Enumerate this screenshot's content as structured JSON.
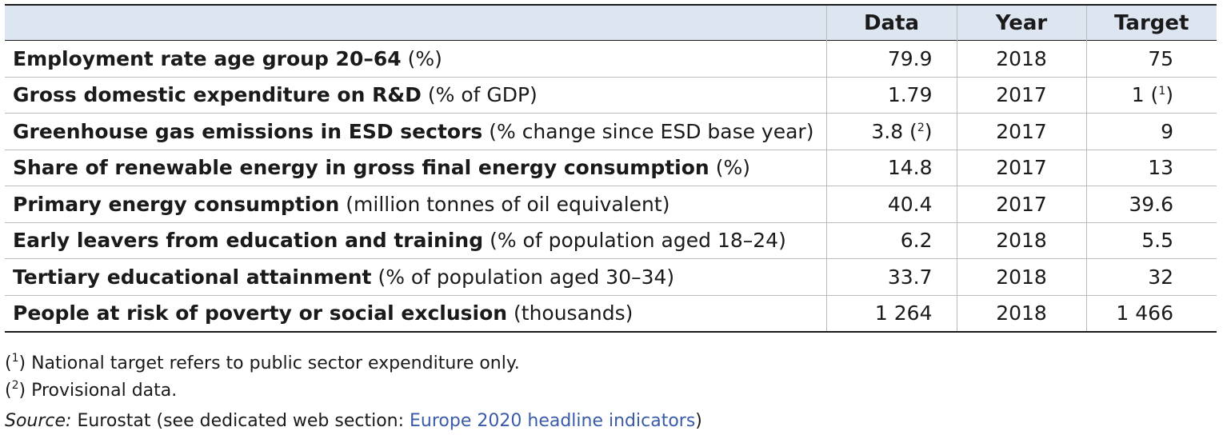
{
  "table": {
    "header": {
      "data": "Data",
      "year": "Year",
      "target": "Target"
    },
    "rows": [
      {
        "indicator": "Employment rate age group 20–64",
        "unit": "(%)",
        "data": "79.9",
        "data_note": "",
        "year": "2018",
        "target": "75",
        "target_note": ""
      },
      {
        "indicator": "Gross domestic expenditure on R&D",
        "unit": "(% of GDP)",
        "data": "1.79",
        "data_note": "",
        "year": "2017",
        "target": "1 (",
        "target_note": "1"
      },
      {
        "indicator": "Greenhouse gas emissions in ESD sectors",
        "unit": "(% change since ESD base year)",
        "data": "3.8 (",
        "data_note": "2",
        "year": "2017",
        "target": "9",
        "target_note": ""
      },
      {
        "indicator": "Share of renewable energy in gross final energy consumption",
        "unit": "(%)",
        "data": "14.8",
        "data_note": "",
        "year": "2017",
        "target": "13",
        "target_note": ""
      },
      {
        "indicator": "Primary energy consumption",
        "unit": "(million tonnes of oil equivalent)",
        "data": "40.4",
        "data_note": "",
        "year": "2017",
        "target": "39.6",
        "target_note": ""
      },
      {
        "indicator": "Early leavers from education and training",
        "unit": "(% of population aged 18–24)",
        "data": "6.2",
        "data_note": "",
        "year": "2018",
        "target": "5.5",
        "target_note": ""
      },
      {
        "indicator": "Tertiary educational attainment",
        "unit": "(% of population aged 30–34)",
        "data": "33.7",
        "data_note": "",
        "year": "2018",
        "target": "32",
        "target_note": ""
      },
      {
        "indicator": "People at risk of poverty or social exclusion",
        "unit": "(thousands)",
        "data": "1 264",
        "data_note": "",
        "year": "2018",
        "target": "1 466",
        "target_note": ""
      }
    ]
  },
  "footnotes": {
    "note1_marker": "1",
    "note1_text": ") National target refers to public sector expenditure only.",
    "note2_marker": "2",
    "note2_text": ") Provisional data.",
    "source_label": "Source:",
    "source_text": " Eurostat (see dedicated web section: ",
    "source_link": "Europe 2020 headline indicators",
    "source_close": ")"
  },
  "colors": {
    "header_bg": "#dde5f1",
    "link": "#3a5ba8",
    "text": "#1a1a1a"
  }
}
